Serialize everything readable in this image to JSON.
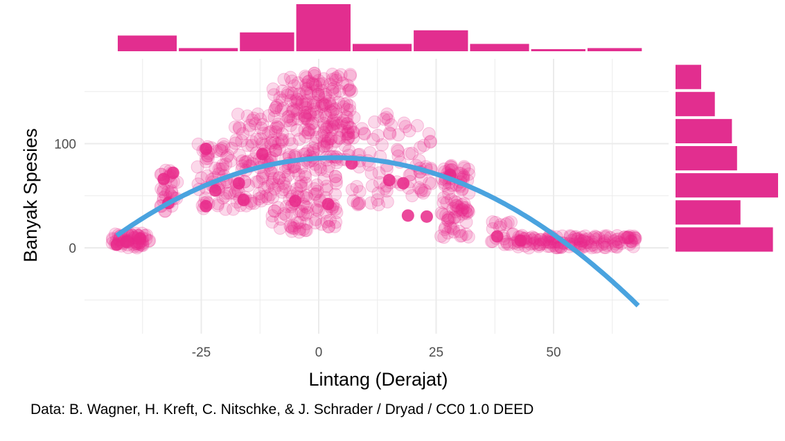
{
  "chart_data": {
    "type": "scatter",
    "xlabel": "Lintang (Derajat)",
    "ylabel": "Banyak Spesies",
    "xlim": [
      -50,
      75
    ],
    "ylim": [
      -80,
      185
    ],
    "x_ticks": [
      -25,
      0,
      25,
      50
    ],
    "y_ticks": [
      0,
      100
    ],
    "grid": true,
    "colors": {
      "points": "#e7298a",
      "fit": "#4aa3df",
      "grid": "#ebebeb",
      "hist": "#e22e8f"
    },
    "trend": {
      "type": "quadratic",
      "coefficients": {
        "a": -0.0343,
        "b": 0.252,
        "c": 86
      },
      "x_range": [
        -43,
        68
      ]
    },
    "clusters": [
      {
        "x": [
          -44,
          -36
        ],
        "y": [
          0,
          14
        ],
        "n": 60
      },
      {
        "x": [
          -34,
          -30
        ],
        "y": [
          35,
          75
        ],
        "n": 30
      },
      {
        "x": [
          -26,
          -18
        ],
        "y": [
          35,
          100
        ],
        "n": 60
      },
      {
        "x": [
          -18,
          -10
        ],
        "y": [
          40,
          130
        ],
        "n": 90
      },
      {
        "x": [
          -10,
          -2
        ],
        "y": [
          15,
          165
        ],
        "n": 160
      },
      {
        "x": [
          -3,
          7
        ],
        "y": [
          80,
          170
        ],
        "n": 160
      },
      {
        "x": [
          -1,
          4
        ],
        "y": [
          20,
          80
        ],
        "n": 40
      },
      {
        "x": [
          7,
          16
        ],
        "y": [
          40,
          130
        ],
        "n": 50
      },
      {
        "x": [
          16,
          24
        ],
        "y": [
          50,
          120
        ],
        "n": 40
      },
      {
        "x": [
          26,
          32
        ],
        "y": [
          10,
          85
        ],
        "n": 90
      },
      {
        "x": [
          36,
          42
        ],
        "y": [
          3,
          25
        ],
        "n": 20
      },
      {
        "x": [
          42,
          68
        ],
        "y": [
          0,
          12
        ],
        "n": 140
      }
    ],
    "highlight_points": [
      {
        "x": -43,
        "y": 3
      },
      {
        "x": -41,
        "y": 6
      },
      {
        "x": -38,
        "y": 9
      },
      {
        "x": -33,
        "y": 66
      },
      {
        "x": -31,
        "y": 72
      },
      {
        "x": -32,
        "y": 43
      },
      {
        "x": -24,
        "y": 95
      },
      {
        "x": -24,
        "y": 40
      },
      {
        "x": -22,
        "y": 55
      },
      {
        "x": -17,
        "y": 62
      },
      {
        "x": -16,
        "y": 46
      },
      {
        "x": -12,
        "y": 90
      },
      {
        "x": -5,
        "y": 45
      },
      {
        "x": 2,
        "y": 42
      },
      {
        "x": 7,
        "y": 81
      },
      {
        "x": 15,
        "y": 65
      },
      {
        "x": 18,
        "y": 62
      },
      {
        "x": 19,
        "y": 31
      },
      {
        "x": 23,
        "y": 30
      },
      {
        "x": 28,
        "y": 70
      },
      {
        "x": 38,
        "y": 11
      },
      {
        "x": 43,
        "y": 7
      }
    ],
    "x_hist": [
      {
        "x0": -43,
        "x1": -30,
        "count": 15
      },
      {
        "x0": -30,
        "x1": -17,
        "count": 3
      },
      {
        "x0": -17,
        "x1": -5,
        "count": 18
      },
      {
        "x0": -5,
        "x1": 7,
        "count": 45
      },
      {
        "x0": 7,
        "x1": 20,
        "count": 7
      },
      {
        "x0": 20,
        "x1": 32,
        "count": 20
      },
      {
        "x0": 32,
        "x1": 45,
        "count": 7
      },
      {
        "x0": 45,
        "x1": 57,
        "count": 2
      },
      {
        "x0": 57,
        "x1": 69,
        "count": 3
      }
    ],
    "y_hist": [
      {
        "y0": -5,
        "y1": 21,
        "count": 57
      },
      {
        "y0": 21,
        "y1": 47,
        "count": 38
      },
      {
        "y0": 47,
        "y1": 73,
        "count": 60
      },
      {
        "y0": 73,
        "y1": 99,
        "count": 36
      },
      {
        "y0": 99,
        "y1": 125,
        "count": 33
      },
      {
        "y0": 125,
        "y1": 151,
        "count": 23
      },
      {
        "y0": 151,
        "y1": 177,
        "count": 15
      }
    ]
  },
  "caption": "Data: B. Wagner, H. Kreft, C. Nitschke, & J. Schrader / Dryad / CC0 1.0 DEED"
}
